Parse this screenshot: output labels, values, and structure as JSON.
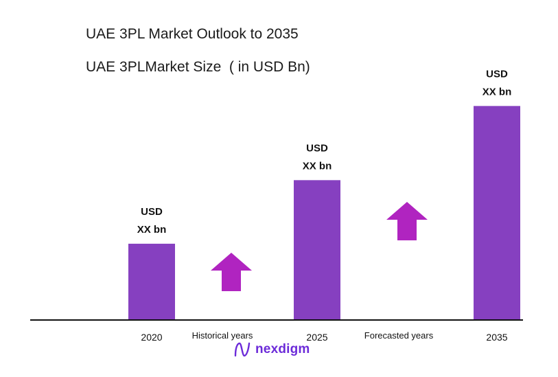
{
  "title": "UAE 3PL Market Outlook to 2035",
  "subtitle": "UAE 3PLMarket Size  ( in USD Bn)",
  "colors": {
    "bar": "#8640c0",
    "arrow": "#b024c0",
    "axis": "#111111",
    "logo": "#6c2bd9"
  },
  "segment_labels": [
    "Historical years",
    "Forecasted years"
  ],
  "growth_arrows": [
    {
      "between": [
        "2020",
        "2025"
      ],
      "icon": "up-arrow-icon"
    },
    {
      "between": [
        "2025",
        "2035"
      ],
      "icon": "up-arrow-icon"
    }
  ],
  "logo": {
    "text": "nexdigm",
    "icon": "nexdigm-n-logo-icon"
  },
  "chart_data": {
    "type": "bar",
    "categories": [
      "2020",
      "2025",
      "2035"
    ],
    "values": [
      36,
      66,
      101
    ],
    "value_labels": [
      [
        "USD",
        "XX bn"
      ],
      [
        "USD",
        "XX bn"
      ],
      [
        "USD",
        "XX bn"
      ]
    ],
    "ylim": [
      0,
      105
    ],
    "grid": false,
    "xlabel": "",
    "ylabel": ""
  }
}
